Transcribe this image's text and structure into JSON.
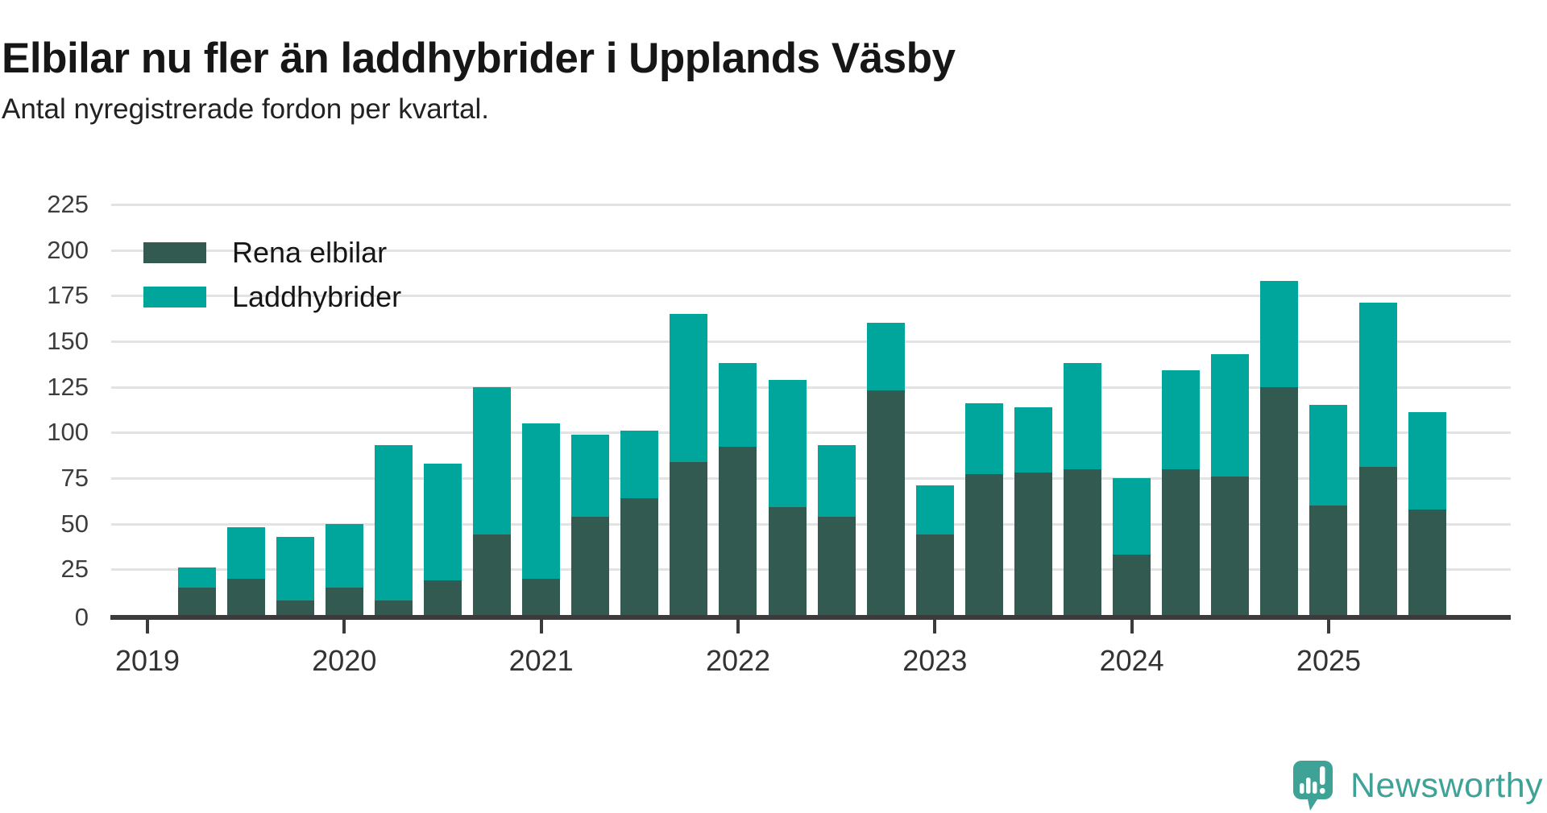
{
  "title": "Elbilar nu fler än laddhybrider i Upplands Väsby",
  "subtitle": "Antal nyregistrerade fordon per kvartal.",
  "legend": [
    {
      "label": "Rena elbilar",
      "color": "#335A50"
    },
    {
      "label": "Laddhybrider",
      "color": "#00A69B"
    }
  ],
  "branding": {
    "name": "Newsworthy",
    "color": "#3FA296"
  },
  "chart_data": {
    "type": "bar",
    "stacked": true,
    "title": "Elbilar nu fler än laddhybrider i Upplands Väsby",
    "subtitle": "Antal nyregistrerade fordon per kvartal.",
    "grid": true,
    "legend_position": "top-left",
    "ylim": [
      0,
      225
    ],
    "y_ticks": [
      0,
      25,
      50,
      75,
      100,
      125,
      150,
      175,
      200,
      225
    ],
    "x_tick_labels": [
      "2019",
      "2020",
      "2021",
      "2022",
      "2023",
      "2024",
      "2025"
    ],
    "categories": [
      "2019 Q2",
      "2019 Q3",
      "2019 Q4",
      "2020 Q1",
      "2020 Q2",
      "2020 Q3",
      "2020 Q4",
      "2021 Q1",
      "2021 Q2",
      "2021 Q3",
      "2021 Q4",
      "2022 Q1",
      "2022 Q2",
      "2022 Q3",
      "2022 Q4",
      "2023 Q1",
      "2023 Q2",
      "2023 Q3",
      "2023 Q4",
      "2024 Q1",
      "2024 Q2",
      "2024 Q3",
      "2024 Q4",
      "2025 Q1",
      "2025 Q2",
      "2025 Q3"
    ],
    "series": [
      {
        "name": "Rena elbilar",
        "color": "#335A50",
        "values": [
          15,
          20,
          8,
          15,
          8,
          19,
          44,
          20,
          54,
          64,
          84,
          92,
          59,
          54,
          123,
          44,
          77,
          78,
          80,
          33,
          80,
          76,
          125,
          60,
          81,
          58
        ]
      },
      {
        "name": "Laddhybrider",
        "color": "#00A69B",
        "values": [
          11,
          28,
          35,
          35,
          85,
          64,
          81,
          85,
          45,
          37,
          81,
          46,
          70,
          39,
          37,
          27,
          39,
          36,
          58,
          42,
          54,
          67,
          58,
          55,
          90,
          53
        ]
      }
    ]
  }
}
